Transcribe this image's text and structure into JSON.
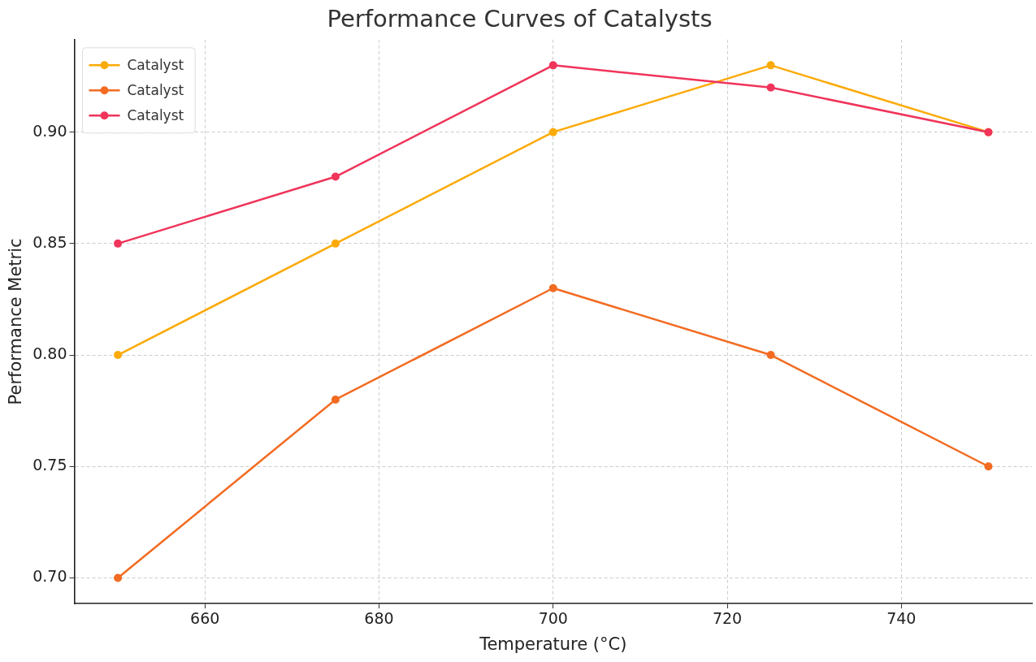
{
  "chart_data": {
    "type": "line",
    "title": "Performance Curves of Catalysts",
    "xlabel": "Temperature (°C)",
    "ylabel": "Performance Metric",
    "x": [
      650,
      675,
      700,
      725,
      750
    ],
    "series": [
      {
        "name": "Catalyst",
        "color": "#fbaa07",
        "values": [
          0.8,
          0.85,
          0.9,
          0.93,
          0.9
        ]
      },
      {
        "name": "Catalyst",
        "color": "#f26b21",
        "values": [
          0.7,
          0.78,
          0.83,
          0.8,
          0.75
        ]
      },
      {
        "name": "Catalyst",
        "color": "#f0345a",
        "values": [
          0.85,
          0.88,
          0.93,
          0.92,
          0.9
        ]
      }
    ],
    "xlim": [
      645,
      755
    ],
    "xticks": [
      660,
      680,
      700,
      720,
      740
    ],
    "ylim": [
      0.6885,
      0.9415
    ],
    "yticks": [
      {
        "value": 0.7,
        "label": "0.70"
      },
      {
        "value": 0.75,
        "label": "0.75"
      },
      {
        "value": 0.8,
        "label": "0.80"
      },
      {
        "value": 0.85,
        "label": "0.85"
      },
      {
        "value": 0.9,
        "label": "0.90"
      }
    ],
    "grid": true,
    "legend": "top left",
    "marker": "circle",
    "line_style": "solid"
  }
}
